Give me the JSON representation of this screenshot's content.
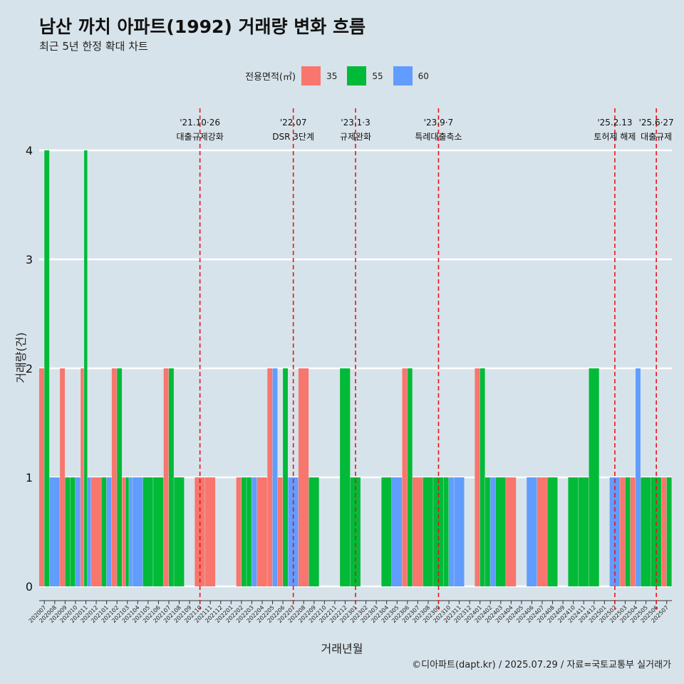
{
  "title": "남산 까치 아파트(1992) 거래량 변화 흐름",
  "subtitle": "최근 5년 한정 확대 차트",
  "caption": "©디아파트(dapt.kr) / 2025.07.29 / 자료=국토교통부 실거래가",
  "chart_data": {
    "type": "bar",
    "xlabel": "거래년월",
    "ylabel": "거래량(건)",
    "ylim": [
      0,
      4
    ],
    "yticks": [
      "0",
      "1",
      "2",
      "3",
      "4"
    ],
    "legend_title": "전용면적(㎡)",
    "legend_position": "top",
    "grid": true,
    "categories": [
      "202007",
      "202008",
      "202009",
      "202010",
      "202011",
      "202012",
      "202101",
      "202102",
      "202103",
      "202104",
      "202105",
      "202106",
      "202107",
      "202108",
      "202109",
      "202110",
      "202111",
      "202112",
      "202201",
      "202202",
      "202203",
      "202204",
      "202205",
      "202206",
      "202207",
      "202208",
      "202209",
      "202210",
      "202211",
      "202212",
      "202301",
      "202302",
      "202303",
      "202304",
      "202305",
      "202306",
      "202307",
      "202308",
      "202309",
      "202310",
      "202311",
      "202312",
      "202401",
      "202402",
      "202403",
      "202404",
      "202405",
      "202406",
      "202407",
      "202408",
      "202409",
      "202410",
      "202411",
      "202412",
      "202501",
      "202502",
      "202503",
      "202504",
      "202505",
      "202506",
      "202507"
    ],
    "series": [
      {
        "name": "35",
        "color": "#f8766d",
        "values": [
          2,
          0,
          2,
          0,
          2,
          1,
          0,
          2,
          1,
          0,
          0,
          0,
          2,
          0,
          0,
          1,
          1,
          0,
          0,
          1,
          0,
          1,
          2,
          1,
          0,
          2,
          0,
          0,
          0,
          0,
          0,
          0,
          0,
          0,
          0,
          2,
          1,
          0,
          0,
          0,
          0,
          0,
          2,
          0,
          0,
          1,
          0,
          0,
          1,
          0,
          0,
          0,
          0,
          0,
          0,
          0,
          1,
          1,
          0,
          0,
          1
        ]
      },
      {
        "name": "55",
        "color": "#00ba38",
        "values": [
          4,
          0,
          1,
          1,
          4,
          0,
          1,
          2,
          1,
          0,
          1,
          1,
          2,
          1,
          0,
          0,
          0,
          0,
          0,
          1,
          1,
          0,
          0,
          2,
          0,
          0,
          1,
          0,
          0,
          2,
          1,
          0,
          0,
          1,
          0,
          2,
          0,
          1,
          1,
          1,
          0,
          0,
          2,
          1,
          1,
          0,
          0,
          0,
          0,
          1,
          0,
          1,
          1,
          2,
          0,
          0,
          1,
          0,
          1,
          1,
          1
        ]
      },
      {
        "name": "60",
        "color": "#619cff",
        "values": [
          0,
          1,
          0,
          1,
          1,
          0,
          1,
          0,
          1,
          1,
          0,
          0,
          0,
          0,
          0,
          0,
          0,
          0,
          0,
          0,
          1,
          0,
          2,
          0,
          1,
          0,
          0,
          0,
          0,
          0,
          0,
          0,
          0,
          0,
          1,
          0,
          0,
          0,
          0,
          1,
          1,
          0,
          0,
          1,
          0,
          0,
          0,
          1,
          0,
          0,
          0,
          0,
          0,
          0,
          0,
          1,
          0,
          2,
          0,
          0,
          0
        ]
      }
    ],
    "annotations": [
      {
        "at": "202110",
        "date": "'21.10·26",
        "label": "대출규제강화"
      },
      {
        "at": "202207",
        "date": "'22.07",
        "label": "DSR 3단계"
      },
      {
        "at": "202301",
        "date": "'23.1·3",
        "label": "규제완화"
      },
      {
        "at": "202309",
        "date": "'23.9·7",
        "label": "특례대출축소"
      },
      {
        "at": "202502",
        "date": "'25.2.13",
        "label": "토허제 해제"
      },
      {
        "at": "202506",
        "date": "'25.6·27",
        "label": "대출규제"
      }
    ]
  }
}
